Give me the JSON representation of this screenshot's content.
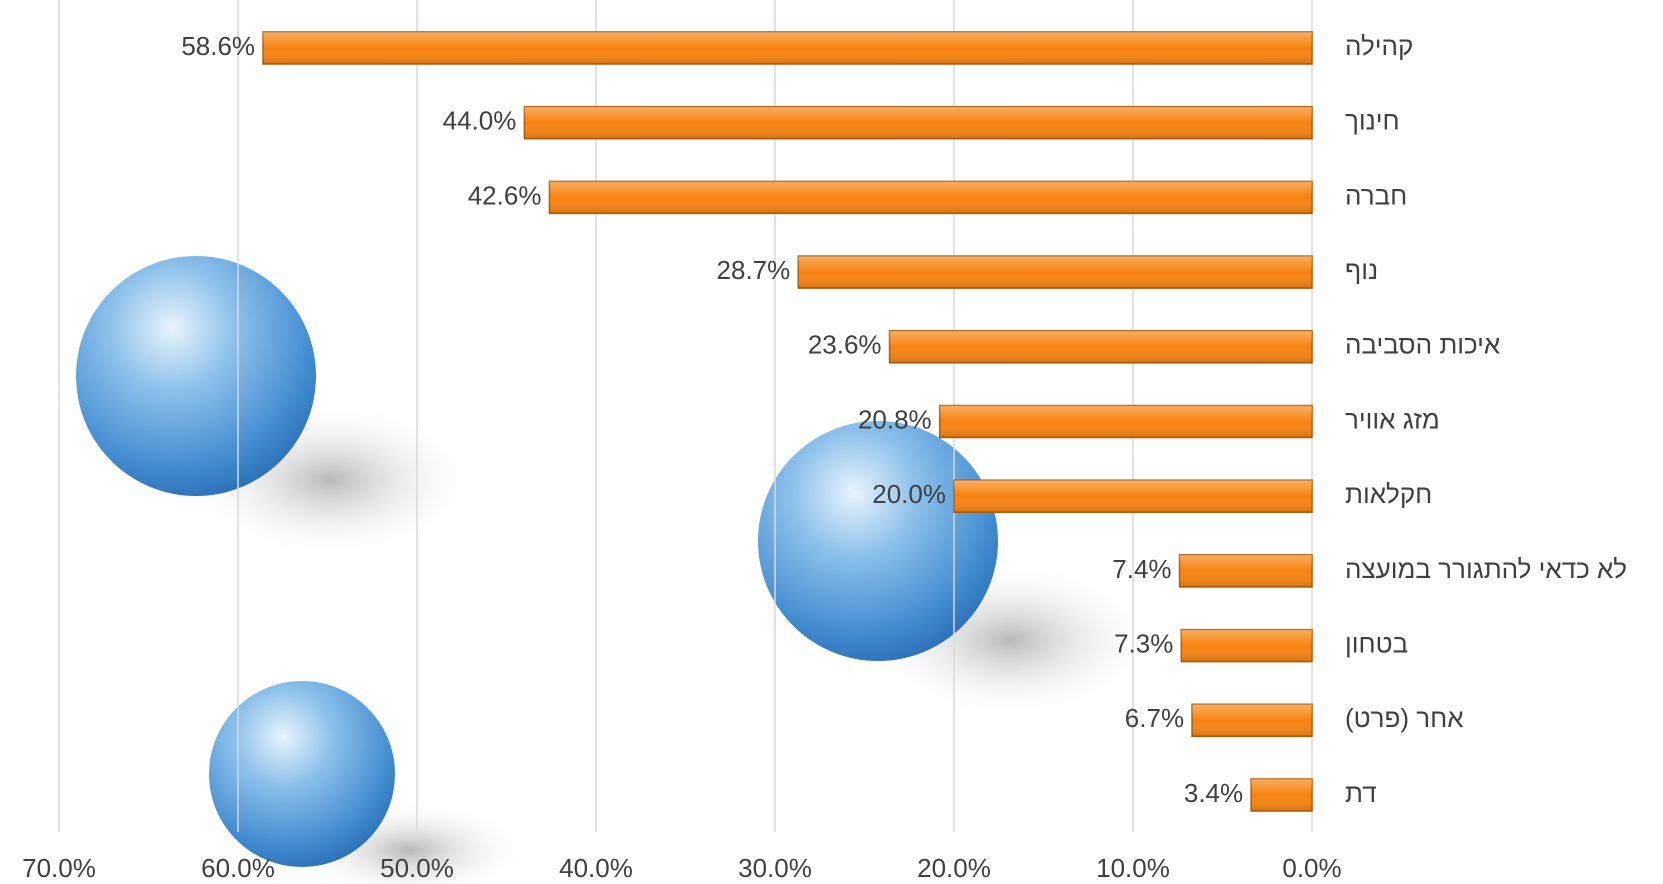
{
  "chart_data": {
    "type": "bar",
    "orientation": "horizontal",
    "categories": [
      "קהילה",
      "חינוך",
      "חברה",
      "נוף",
      "איכות הסביבה",
      "מזג אוויר",
      "חקלאות",
      "לא כדאי להתגורר במועצה",
      "בטחון",
      "אחר (פרט)",
      "דת"
    ],
    "values": [
      58.6,
      44.0,
      42.6,
      28.7,
      23.6,
      20.8,
      20.0,
      7.4,
      7.3,
      6.7,
      3.4
    ],
    "value_labels": [
      "58.6%",
      "44.0%",
      "42.6%",
      "28.7%",
      "23.6%",
      "20.8%",
      "20.0%",
      "7.4%",
      "7.3%",
      "6.7%",
      "3.4%"
    ],
    "color": "#f7820f",
    "xlim": [
      0,
      70
    ],
    "x_reversed": true,
    "xticks": [
      {
        "value": 0,
        "label": "0.0%"
      },
      {
        "value": 10,
        "label": "10.0%"
      },
      {
        "value": 20,
        "label": "20.0%"
      },
      {
        "value": 30,
        "label": "30.0%"
      },
      {
        "value": 40,
        "label": "40.0%"
      },
      {
        "value": 50,
        "label": "50.0%"
      },
      {
        "value": 60,
        "label": "60.0%"
      },
      {
        "value": 70,
        "label": "70.0%"
      }
    ],
    "grid": true
  }
}
